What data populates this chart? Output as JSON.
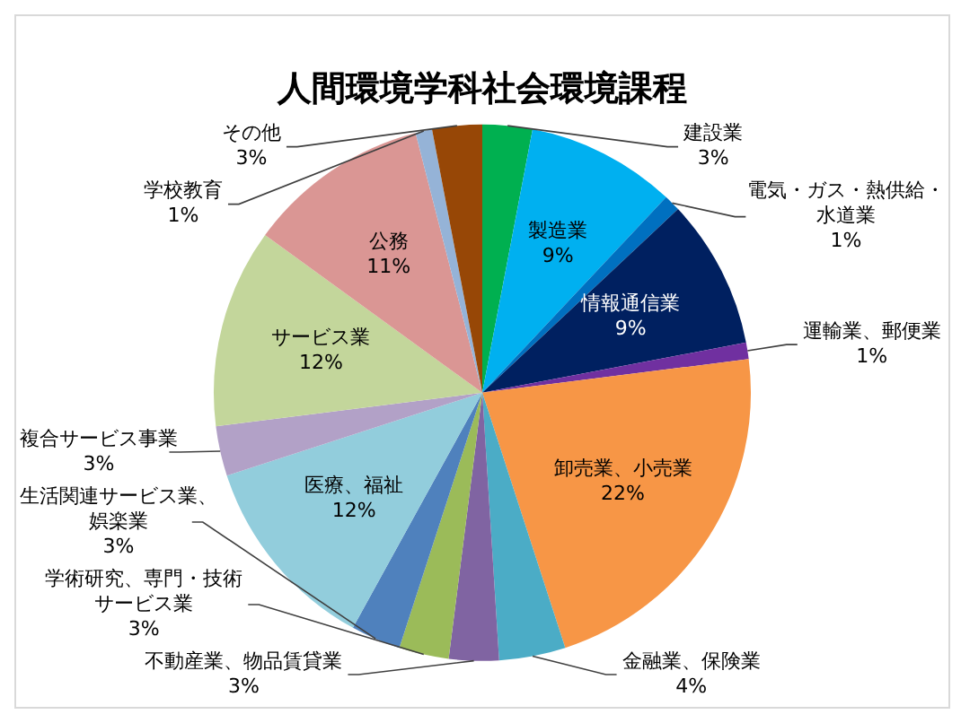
{
  "chart_data": {
    "type": "pie",
    "title": "人間環境学科社会環境課程",
    "categories": [
      "建設業",
      "製造業",
      "電気・ガス・熱供給・水道業",
      "情報通信業",
      "運輸業、郵便業",
      "卸売業、小売業",
      "金融業、保険業",
      "不動産業、物品賃貸業",
      "学術研究、専門・技術サービス業",
      "生活関連サービス業、娯楽業",
      "医療、福祉",
      "複合サービス事業",
      "サービス業",
      "公務",
      "学校教育",
      "その他"
    ],
    "values": [
      3,
      9,
      1,
      9,
      1,
      22,
      4,
      3,
      3,
      3,
      12,
      3,
      12,
      11,
      1,
      3
    ],
    "value_labels": [
      "3%",
      "9%",
      "1%",
      "9%",
      "1%",
      "22%",
      "4%",
      "3%",
      "3%",
      "3%",
      "12%",
      "3%",
      "12%",
      "11%",
      "1%",
      "3%"
    ],
    "colors": [
      "#00b050",
      "#00b0f0",
      "#0070c0",
      "#002060",
      "#7030a0",
      "#f79646",
      "#4bacc6",
      "#8064a2",
      "#9bbb59",
      "#4f81bd",
      "#92cddc",
      "#b2a1c7",
      "#c3d69b",
      "#da9694",
      "#95b3d7",
      "#974706"
    ],
    "legend": false
  }
}
